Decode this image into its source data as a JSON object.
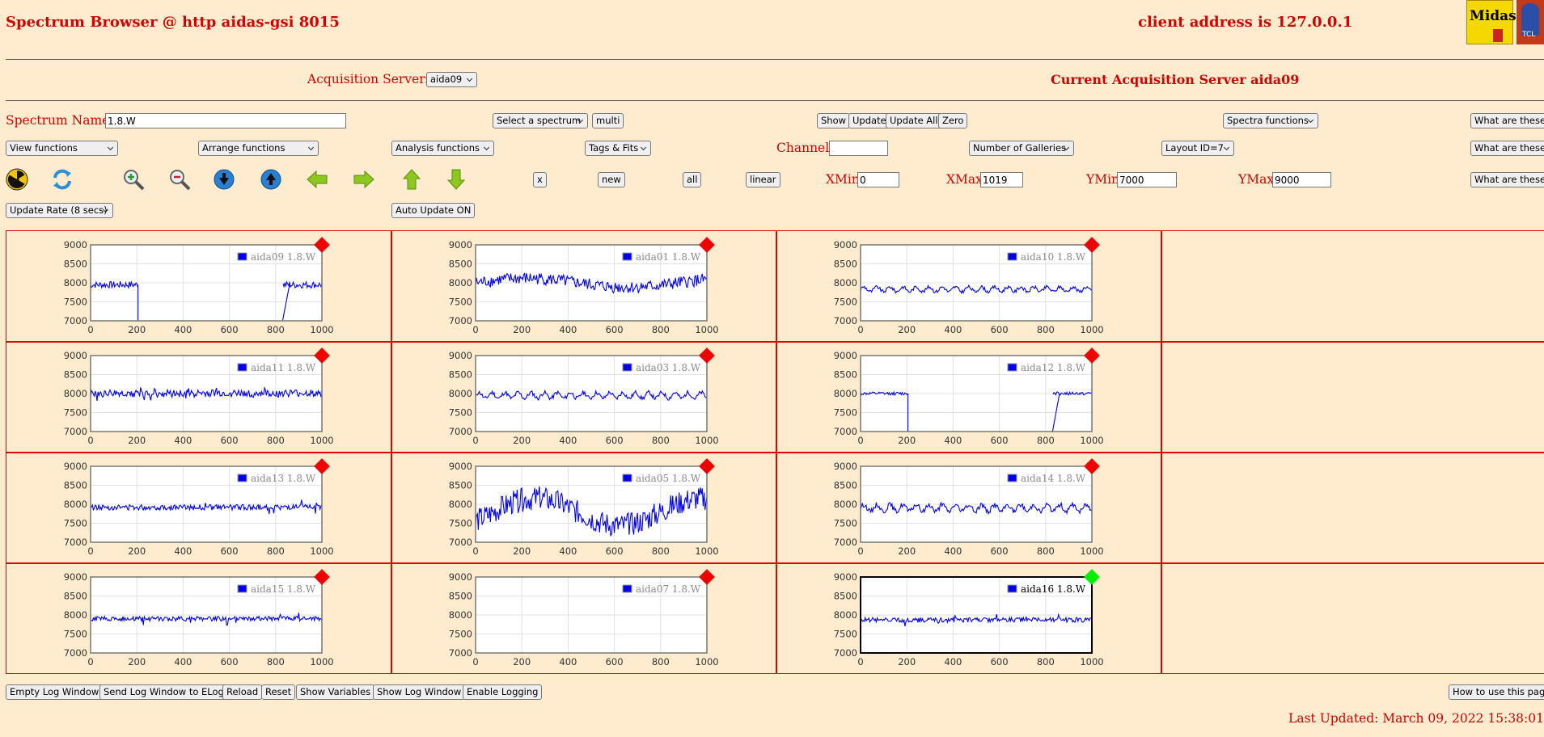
{
  "header": {
    "title": "Spectrum Browser @ http aidas-gsi 8015",
    "client_address": "client address is 127.0.0.1",
    "logo_text": "Midas",
    "logo2_text": "TCL"
  },
  "servers": {
    "label": "Acquisition Servers",
    "selected": "aida09",
    "current": "Current Acquisition Server aida09"
  },
  "spectrum": {
    "label": "Spectrum Name:",
    "value": "1.8.W",
    "select_label": "Select a spectrum",
    "multi": "multi",
    "show": "Show",
    "update": "Update",
    "update_all": "Update All",
    "zero": "Zero",
    "spectra_functions": "Spectra functions",
    "what": "What are these?"
  },
  "row2": {
    "view": "View functions",
    "arrange": "Arrange functions",
    "analysis": "Analysis functions",
    "tags": "Tags & Fits",
    "channel_label": "Channel:",
    "channel_value": "",
    "galleries": "Number of Galleries",
    "layout": "Layout ID=7",
    "what": "What are these?"
  },
  "row3": {
    "icons": [
      "radiation-icon",
      "refresh-icon",
      "zoom-in-icon",
      "zoom-out-icon",
      "arrow-down-circle-icon",
      "arrow-up-circle-icon",
      "arrow-left-icon",
      "arrow-right-icon",
      "arrow-up-icon",
      "arrow-down-icon"
    ],
    "x": "x",
    "new": "new",
    "all": "all",
    "linear": "linear",
    "xmin_label": "XMin",
    "xmin": "0",
    "xmax_label": "XMax",
    "xmax": "1019",
    "ymin_label": "YMin",
    "ymin": "7000",
    "ymax_label": "YMax",
    "ymax": "9000",
    "what": "What are these?"
  },
  "row4": {
    "update_rate": "Update Rate (8 secs)",
    "auto_update": "Auto Update ON"
  },
  "chart_data": {
    "type": "line",
    "xlim": [
      0,
      1000
    ],
    "ylim": [
      7000,
      9000
    ],
    "x_ticks": [
      "0",
      "200",
      "400",
      "600",
      "800",
      "1000"
    ],
    "y_ticks": [
      "9000",
      "8500",
      "8000",
      "7500",
      "7000"
    ],
    "grid": true,
    "legend": "top-right",
    "colors": {
      "series": "#0000ee",
      "marker_off": "#ee0000",
      "marker_on": "#00ee00"
    },
    "panels": [
      {
        "name": "aida09 1.8.W",
        "active": false,
        "shape": "gap",
        "base": 7950,
        "amp": 90,
        "gap": [
          205,
          830
        ]
      },
      {
        "name": "aida01 1.8.W",
        "active": false,
        "shape": "wavy",
        "base": 8000,
        "amp": 200
      },
      {
        "name": "aida10 1.8.W",
        "active": false,
        "shape": "osc",
        "base": 7830,
        "amp": 90
      },
      {
        "name": "aida11 1.8.W",
        "active": false,
        "shape": "noise",
        "base": 8000,
        "amp": 110
      },
      {
        "name": "aida03 1.8.W",
        "active": false,
        "shape": "osc",
        "base": 7950,
        "amp": 110
      },
      {
        "name": "aida12 1.8.W",
        "active": false,
        "shape": "gap",
        "base": 8000,
        "amp": 40,
        "gap": [
          205,
          830
        ]
      },
      {
        "name": "aida13 1.8.W",
        "active": false,
        "shape": "noise",
        "base": 7920,
        "amp": 80
      },
      {
        "name": "aida05 1.8.W",
        "active": false,
        "shape": "big",
        "base": 7800,
        "amp": 450
      },
      {
        "name": "aida14 1.8.W",
        "active": false,
        "shape": "osc",
        "base": 7900,
        "amp": 130
      },
      {
        "name": "aida15 1.8.W",
        "active": false,
        "shape": "noise",
        "base": 7900,
        "amp": 70
      },
      {
        "name": "aida07 1.8.W",
        "active": false,
        "shape": "empty"
      },
      {
        "name": "aida16 1.8.W",
        "active": true,
        "shape": "noise",
        "base": 7870,
        "amp": 70
      }
    ]
  },
  "footer": {
    "empty_log": "Empty Log Window",
    "send_log": "Send Log Window to ELog",
    "reload": "Reload",
    "reset": "Reset",
    "show_vars": "Show Variables",
    "show_log": "Show Log Window",
    "enable_log": "Enable Logging",
    "how_to": "How to use this page",
    "last_updated": "Last Updated: March 09, 2022 15:38:01"
  }
}
